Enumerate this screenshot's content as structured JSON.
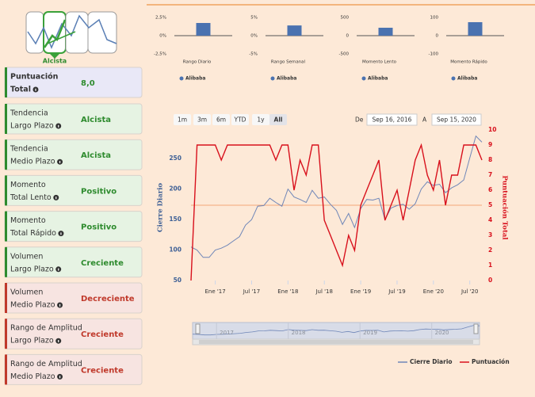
{
  "sidebar": {
    "signal": "Alcista",
    "cards": [
      {
        "label": [
          "Puntuación",
          "Total"
        ],
        "value": 8.0,
        "value_label": "8,0",
        "color": "#2e8b2e",
        "border": "#2e8b2e",
        "background": "#e9e8f7"
      },
      {
        "label": [
          "Tendencia",
          "Largo Plazo"
        ],
        "value": "Alcista",
        "color": "#2e8b2e",
        "border": "#2e8b2e",
        "background": "#e6f3e3"
      },
      {
        "label": [
          "Tendencia",
          "Medio Plazo"
        ],
        "value": "Alcista",
        "color": "#2e8b2e",
        "border": "#2e8b2e",
        "background": "#e6f3e3"
      },
      {
        "label": [
          "Momento",
          "Total Lento"
        ],
        "value": "Positivo",
        "color": "#2e8b2e",
        "border": "#2e8b2e",
        "background": "#e6f3e3"
      },
      {
        "label": [
          "Momento",
          "Total Rápido"
        ],
        "value": "Positivo",
        "color": "#2e8b2e",
        "border": "#2e8b2e",
        "background": "#e6f3e3"
      },
      {
        "label": [
          "Volumen",
          "Largo Plazo"
        ],
        "value": "Creciente",
        "color": "#2e8b2e",
        "border": "#2e8b2e",
        "background": "#e6f3e3"
      },
      {
        "label": [
          "Volumen",
          "Medio Plazo"
        ],
        "value": "Decreciente",
        "color": "#c0392b",
        "border": "#c0392b",
        "background": "#f7e4e1"
      },
      {
        "label": [
          "Rango de Amplitud",
          "Largo Plazo"
        ],
        "value": "Creciente",
        "color": "#c0392b",
        "border": "#c0392b",
        "background": "#f7e4e1"
      },
      {
        "label": [
          "Rango de Amplitud",
          "Medio Plazo"
        ],
        "value": "Creciente",
        "color": "#c0392b",
        "border": "#c0392b",
        "background": "#f7e4e1"
      }
    ]
  },
  "range_selector": {
    "buttons": [
      "1m",
      "3m",
      "6m",
      "YTD",
      "1y",
      "All"
    ],
    "selected": "All",
    "from_label": "De",
    "from": "Sep 16, 2016",
    "to_label": "A",
    "to": "Sep 15, 2020"
  },
  "chart_data": [
    {
      "type": "bar",
      "title": "Rango Diario",
      "series": [
        {
          "name": "Alibaba",
          "color": "#4a72b0",
          "values": [
            1.74
          ]
        }
      ],
      "ylim": [
        -2.5,
        2.5
      ],
      "yticks": [
        {
          "value": 2.5,
          "label": "2,5%"
        },
        {
          "value": 0,
          "label": "0%"
        },
        {
          "value": -2.5,
          "label": "-2,5%"
        }
      ]
    },
    {
      "type": "bar",
      "title": "Rango Semanal",
      "series": [
        {
          "name": "Alibaba",
          "color": "#4a72b0",
          "values": [
            2.8
          ]
        }
      ],
      "ylim": [
        -5,
        5
      ],
      "yticks": [
        {
          "value": 5,
          "label": "5%"
        },
        {
          "value": 0,
          "label": "0%"
        },
        {
          "value": -5,
          "label": "-5%"
        }
      ]
    },
    {
      "type": "bar",
      "title": "Momento Lento",
      "series": [
        {
          "name": "Alibaba",
          "color": "#4a72b0",
          "values": [
            217
          ]
        }
      ],
      "ylim": [
        -500,
        500
      ],
      "yticks": [
        500,
        0,
        -500
      ]
    },
    {
      "type": "bar",
      "title": "Momento Rápido",
      "series": [
        {
          "name": "Alibaba",
          "color": "#4a72b0",
          "values": [
            74
          ]
        }
      ],
      "ylim": [
        -100,
        100
      ],
      "yticks": [
        100,
        0,
        -100
      ]
    },
    {
      "type": "line",
      "ylabel": "Cierre Diario",
      "y2label": "Puntuación Total",
      "x": [
        "2016-09",
        "2016-10",
        "2016-11",
        "2016-12",
        "2017-01",
        "2017-02",
        "2017-03",
        "2017-04",
        "2017-05",
        "2017-06",
        "2017-07",
        "2017-08",
        "2017-09",
        "2017-10",
        "2017-11",
        "2017-12",
        "2018-01",
        "2018-02",
        "2018-03",
        "2018-04",
        "2018-05",
        "2018-06",
        "2018-07",
        "2018-08",
        "2018-09",
        "2018-10",
        "2018-11",
        "2018-12",
        "2019-01",
        "2019-02",
        "2019-03",
        "2019-04",
        "2019-05",
        "2019-06",
        "2019-07",
        "2019-08",
        "2019-09",
        "2019-10",
        "2019-11",
        "2019-12",
        "2020-01",
        "2020-02",
        "2020-03",
        "2020-04",
        "2020-05",
        "2020-06",
        "2020-07",
        "2020-08",
        "2020-09"
      ],
      "series": [
        {
          "name": "Cierre Diario",
          "color": "#6f86b8",
          "axis": "y",
          "values": [
            105,
            100,
            88,
            88,
            100,
            103,
            108,
            115,
            122,
            141,
            150,
            172,
            173,
            185,
            178,
            172,
            200,
            187,
            183,
            178,
            198,
            185,
            187,
            175,
            165,
            142,
            160,
            137,
            168,
            183,
            182,
            185,
            150,
            169,
            173,
            175,
            167,
            176,
            200,
            212,
            206,
            208,
            194,
            202,
            207,
            215,
            251,
            287,
            277
          ]
        },
        {
          "name": "Puntuación",
          "color": "#d8101c",
          "axis": "y2",
          "values": [
            0,
            9,
            9,
            9,
            9,
            8,
            9,
            9,
            9,
            9,
            9,
            9,
            9,
            9,
            8,
            9,
            9,
            6,
            8,
            7,
            9,
            9,
            4,
            3,
            2,
            1,
            3,
            2,
            5,
            6,
            7,
            8,
            4,
            5,
            6,
            4,
            6,
            8,
            9,
            7,
            6,
            8,
            5,
            7,
            7,
            9,
            9,
            9,
            8
          ]
        }
      ],
      "xlim": [
        "2016-09",
        "2020-09"
      ],
      "xticks": [
        {
          "value": "2017-01",
          "label": "Ene '17"
        },
        {
          "value": "2017-07",
          "label": "Jul '17"
        },
        {
          "value": "2018-01",
          "label": "Ene '18"
        },
        {
          "value": "2018-07",
          "label": "Jul '18"
        },
        {
          "value": "2019-01",
          "label": "Ene '19"
        },
        {
          "value": "2019-07",
          "label": "Jul '19"
        },
        {
          "value": "2020-01",
          "label": "Ene '20"
        },
        {
          "value": "2020-07",
          "label": "Jul '20"
        }
      ],
      "ylim": [
        50,
        297
      ],
      "yticks": [
        50,
        100,
        150,
        200,
        250
      ],
      "y2lim": [
        0,
        10
      ],
      "y2ticks": [
        0,
        1,
        2,
        3,
        4,
        5,
        6,
        7,
        8,
        9,
        10
      ],
      "reference_line": {
        "value": 5,
        "axis": "y2",
        "color": "#f2a77a"
      },
      "navigator_ticks": [
        {
          "value": "2017-01",
          "label": "2017"
        },
        {
          "value": "2018-01",
          "label": "2018"
        },
        {
          "value": "2019-01",
          "label": "2019"
        },
        {
          "value": "2020-01",
          "label": "2020"
        }
      ],
      "legend": "bottom-right"
    }
  ]
}
